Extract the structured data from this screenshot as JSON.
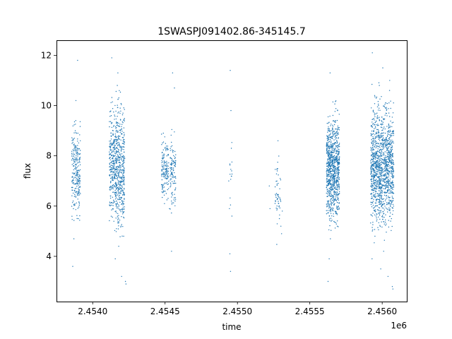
{
  "chart_data": {
    "type": "scatter",
    "title": "1SWASPJ091402.86-345145.7",
    "xlabel": "time",
    "ylabel": "flux",
    "x_offset_label": "1e6",
    "xlim": [
      2453750,
      2456170
    ],
    "ylim": [
      2.2,
      12.6
    ],
    "x_ticks": [
      2454000,
      2454500,
      2455000,
      2455500,
      2456000
    ],
    "x_tick_labels": [
      "2.4540",
      "2.4545",
      "2.4550",
      "2.4555",
      "2.4560"
    ],
    "y_ticks": [
      4,
      6,
      8,
      10,
      12
    ],
    "y_tick_labels": [
      "4",
      "6",
      "8",
      "10",
      "12"
    ],
    "grid": false,
    "legend": "none",
    "marker_color": "#1f77b4",
    "series": [
      {
        "points": [
          [
            2453860,
            7.0
          ],
          [
            2453865,
            6.2
          ],
          [
            2453868,
            7.8
          ],
          [
            2453872,
            8.4
          ],
          [
            2453876,
            6.6
          ],
          [
            2453880,
            9.0
          ],
          [
            2453884,
            10.2
          ],
          [
            2453888,
            8.1
          ],
          [
            2453892,
            7.3
          ],
          [
            2453896,
            11.8
          ],
          [
            2453900,
            6.9
          ],
          [
            2453902,
            7.6
          ],
          [
            2453862,
            3.6
          ],
          [
            2453870,
            4.7
          ],
          [
            2453898,
            8.9
          ],
          [
            2454120,
            8.5
          ],
          [
            2454124,
            6.4
          ],
          [
            2454128,
            9.6
          ],
          [
            2454132,
            11.9
          ],
          [
            2454136,
            7.1
          ],
          [
            2454140,
            5.9
          ],
          [
            2454144,
            8.0
          ],
          [
            2454148,
            6.8
          ],
          [
            2454152,
            7.7
          ],
          [
            2454156,
            3.9
          ],
          [
            2454160,
            9.1
          ],
          [
            2454164,
            6.2
          ],
          [
            2454170,
            10.8
          ],
          [
            2454174,
            11.3
          ],
          [
            2454178,
            8.8
          ],
          [
            2454182,
            6.0
          ],
          [
            2454186,
            7.4
          ],
          [
            2454190,
            9.9
          ],
          [
            2454194,
            6.6
          ],
          [
            2454198,
            8.3
          ],
          [
            2454202,
            7.0
          ],
          [
            2454206,
            5.8
          ],
          [
            2454210,
            8.6
          ],
          [
            2454214,
            4.8
          ],
          [
            2454218,
            6.3
          ],
          [
            2454222,
            7.9
          ],
          [
            2454226,
            3.0
          ],
          [
            2454230,
            2.9
          ],
          [
            2454200,
            3.2
          ],
          [
            2454180,
            4.4
          ],
          [
            2454480,
            7.9
          ],
          [
            2454484,
            6.8
          ],
          [
            2454488,
            8.9
          ],
          [
            2454492,
            7.2
          ],
          [
            2454496,
            6.1
          ],
          [
            2454500,
            8.3
          ],
          [
            2454504,
            7.6
          ],
          [
            2454508,
            6.5
          ],
          [
            2454512,
            8.0
          ],
          [
            2454516,
            7.1
          ],
          [
            2454540,
            7.5
          ],
          [
            2454544,
            6.2
          ],
          [
            2454548,
            8.4
          ],
          [
            2454552,
            11.3
          ],
          [
            2454556,
            6.9
          ],
          [
            2454560,
            7.8
          ],
          [
            2454565,
            10.7
          ],
          [
            2454545,
            4.2
          ],
          [
            2454530,
            5.9
          ],
          [
            2454940,
            7.0
          ],
          [
            2454945,
            5.9
          ],
          [
            2454950,
            11.4
          ],
          [
            2454955,
            9.8
          ],
          [
            2454960,
            7.4
          ],
          [
            2454962,
            5.6
          ],
          [
            2454948,
            4.1
          ],
          [
            2454952,
            3.4
          ],
          [
            2454958,
            8.3
          ],
          [
            2455220,
            6.8
          ],
          [
            2455225,
            5.9
          ],
          [
            2455270,
            6.5
          ],
          [
            2455275,
            7.4
          ],
          [
            2455280,
            8.6
          ],
          [
            2455285,
            6.1
          ],
          [
            2455290,
            5.5
          ],
          [
            2455295,
            7.1
          ],
          [
            2455300,
            5.2
          ],
          [
            2455305,
            4.9
          ],
          [
            2455310,
            5.8
          ],
          [
            2455282,
            6.9
          ],
          [
            2455620,
            7.2
          ],
          [
            2455624,
            6.0
          ],
          [
            2455628,
            9.0
          ],
          [
            2455632,
            8.1
          ],
          [
            2455636,
            6.6
          ],
          [
            2455640,
            11.3
          ],
          [
            2455644,
            7.8
          ],
          [
            2455648,
            5.9
          ],
          [
            2455652,
            8.7
          ],
          [
            2455656,
            7.0
          ],
          [
            2455660,
            6.4
          ],
          [
            2455664,
            9.4
          ],
          [
            2455668,
            7.5
          ],
          [
            2455672,
            6.1
          ],
          [
            2455676,
            8.3
          ],
          [
            2455680,
            5.7
          ],
          [
            2455684,
            7.9
          ],
          [
            2455688,
            6.8
          ],
          [
            2455692,
            9.8
          ],
          [
            2455696,
            7.3
          ],
          [
            2455626,
            3.0
          ],
          [
            2455634,
            3.9
          ],
          [
            2455642,
            4.7
          ],
          [
            2455690,
            5.2
          ],
          [
            2455920,
            7.8
          ],
          [
            2455924,
            6.3
          ],
          [
            2455928,
            9.2
          ],
          [
            2455932,
            12.1
          ],
          [
            2455936,
            8.1
          ],
          [
            2455940,
            6.7
          ],
          [
            2455944,
            7.6
          ],
          [
            2455948,
            10.4
          ],
          [
            2455952,
            6.0
          ],
          [
            2455956,
            8.5
          ],
          [
            2455960,
            7.2
          ],
          [
            2455964,
            9.7
          ],
          [
            2455968,
            6.5
          ],
          [
            2455972,
            8.8
          ],
          [
            2455976,
            7.0
          ],
          [
            2455980,
            10.8
          ],
          [
            2455984,
            6.2
          ],
          [
            2455988,
            8.0
          ],
          [
            2455992,
            7.4
          ],
          [
            2455996,
            9.4
          ],
          [
            2456000,
            6.8
          ],
          [
            2456004,
            11.5
          ],
          [
            2456008,
            7.7
          ],
          [
            2456012,
            6.1
          ],
          [
            2456016,
            8.6
          ],
          [
            2456020,
            7.1
          ],
          [
            2456024,
            10.1
          ],
          [
            2456028,
            6.4
          ],
          [
            2456032,
            8.2
          ],
          [
            2456036,
            7.3
          ],
          [
            2456040,
            6.9
          ],
          [
            2456044,
            9.0
          ],
          [
            2456048,
            7.5
          ],
          [
            2456052,
            11.0
          ],
          [
            2456056,
            6.6
          ],
          [
            2456060,
            7.9
          ],
          [
            2456064,
            5.5
          ],
          [
            2456068,
            8.4
          ],
          [
            2456072,
            7.0
          ],
          [
            2456076,
            6.3
          ],
          [
            2455930,
            3.9
          ],
          [
            2455950,
            4.8
          ],
          [
            2455990,
            3.5
          ],
          [
            2456040,
            3.2
          ],
          [
            2456070,
            2.8
          ],
          [
            2456074,
            2.7
          ],
          [
            2456010,
            4.2
          ]
        ]
      }
    ],
    "clusters": [
      {
        "x_center": 2453885,
        "x_width": 60,
        "y_mean": 7.4,
        "y_spread": 1.0,
        "n": 240
      },
      {
        "x_center": 2454140,
        "x_width": 50,
        "y_mean": 7.6,
        "y_spread": 1.2,
        "n": 320
      },
      {
        "x_center": 2454190,
        "x_width": 60,
        "y_mean": 7.6,
        "y_spread": 1.4,
        "n": 420
      },
      {
        "x_center": 2454500,
        "x_width": 50,
        "y_mean": 7.5,
        "y_spread": 0.7,
        "n": 140
      },
      {
        "x_center": 2454555,
        "x_width": 40,
        "y_mean": 7.3,
        "y_spread": 0.7,
        "n": 110
      },
      {
        "x_center": 2454955,
        "x_width": 15,
        "y_mean": 7.0,
        "y_spread": 1.0,
        "n": 12
      },
      {
        "x_center": 2455280,
        "x_width": 40,
        "y_mean": 6.4,
        "y_spread": 0.9,
        "n": 45
      },
      {
        "x_center": 2455660,
        "x_width": 90,
        "y_mean": 7.5,
        "y_spread": 1.1,
        "n": 900
      },
      {
        "x_center": 2456000,
        "x_width": 160,
        "y_mean": 7.6,
        "y_spread": 1.3,
        "n": 1300
      }
    ]
  }
}
